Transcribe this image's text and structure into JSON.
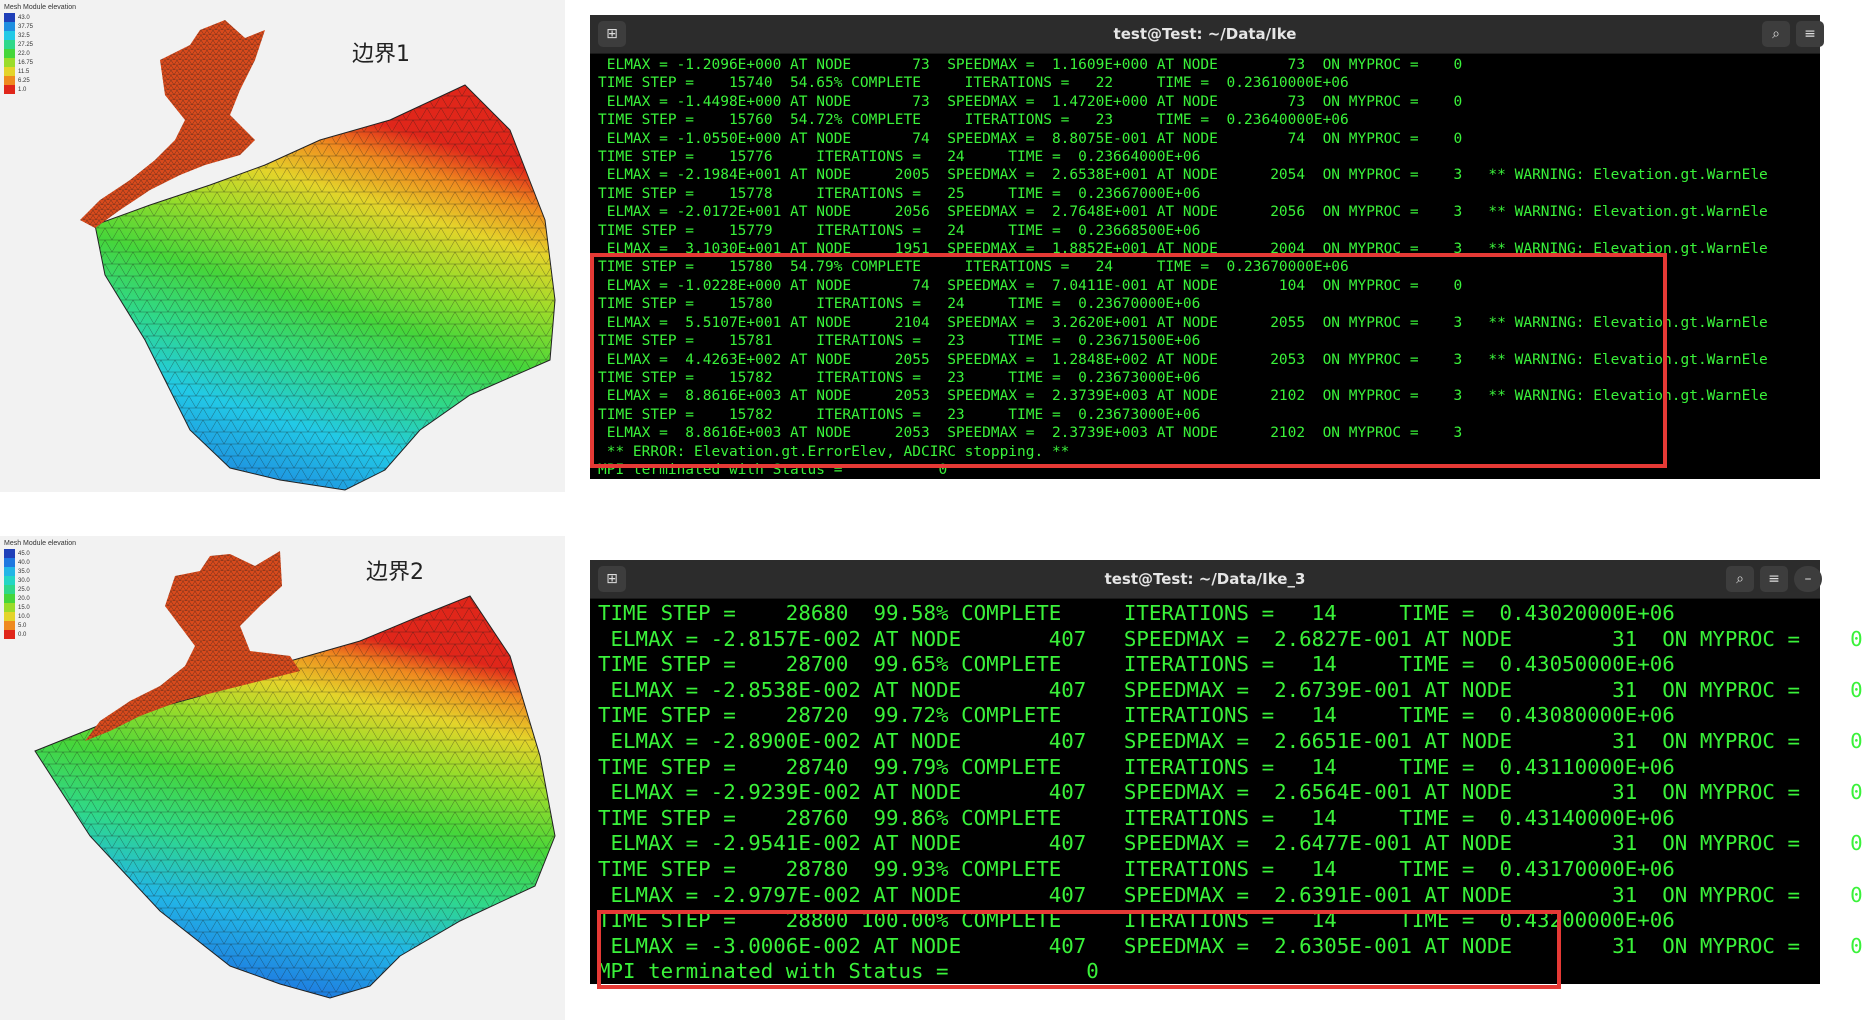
{
  "panels": [
    {
      "legend_title": "Mesh Module elevation",
      "legend_values": [
        "43.0",
        "37.75",
        "32.5",
        "27.25",
        "22.0",
        "16.75",
        "11.5",
        "6.25",
        "1.0"
      ],
      "legend_colors": [
        "#1f3fb8",
        "#1e8ee0",
        "#22c9e6",
        "#2fd88a",
        "#46d63a",
        "#9bdc2a",
        "#e4d42a",
        "#ef8a1f",
        "#e0261a"
      ],
      "boundary_label": "边界1"
    },
    {
      "legend_title": "Mesh Module elevation",
      "legend_values": [
        "45.0",
        "40.0",
        "35.0",
        "30.0",
        "25.0",
        "20.0",
        "15.0",
        "10.0",
        "5.0",
        "0.0"
      ],
      "legend_colors": [
        "#1f3fb8",
        "#1e78e0",
        "#22b6e6",
        "#24d6c4",
        "#2fd88a",
        "#46d63a",
        "#9bdc2a",
        "#e4d42a",
        "#ef8a1f",
        "#e0261a"
      ],
      "boundary_label": "边界2"
    }
  ],
  "terminals": [
    {
      "title": "test@Test: ~/Data/Ike",
      "new_tab_icon": "⊞",
      "buttons": {
        "search": "⌕",
        "menu": "≡"
      },
      "lines": [
        " ELMAX = -1.2096E+000 AT NODE       73  SPEEDMAX =  1.1609E+000 AT NODE        73  ON MYPROC =    0",
        "TIME STEP =    15740  54.65% COMPLETE     ITERATIONS =   22     TIME =  0.23610000E+06",
        " ELMAX = -1.4498E+000 AT NODE       73  SPEEDMAX =  1.4720E+000 AT NODE        73  ON MYPROC =    0",
        "TIME STEP =    15760  54.72% COMPLETE     ITERATIONS =   23     TIME =  0.23640000E+06",
        " ELMAX = -1.0550E+000 AT NODE       74  SPEEDMAX =  8.8075E-001 AT NODE        74  ON MYPROC =    0",
        "TIME STEP =    15776     ITERATIONS =   24     TIME =  0.23664000E+06",
        " ELMAX = -2.1984E+001 AT NODE     2005  SPEEDMAX =  2.6538E+001 AT NODE      2054  ON MYPROC =    3   ** WARNING: Elevation.gt.WarnEle",
        "TIME STEP =    15778     ITERATIONS =   25     TIME =  0.23667000E+06",
        " ELMAX = -2.0172E+001 AT NODE     2056  SPEEDMAX =  2.7648E+001 AT NODE      2056  ON MYPROC =    3   ** WARNING: Elevation.gt.WarnEle",
        "TIME STEP =    15779     ITERATIONS =   24     TIME =  0.23668500E+06",
        " ELMAX =  3.1030E+001 AT NODE     1951  SPEEDMAX =  1.8852E+001 AT NODE      2004  ON MYPROC =    3   ** WARNING: Elevation.gt.WarnEle",
        "TIME STEP =    15780  54.79% COMPLETE     ITERATIONS =   24     TIME =  0.23670000E+06",
        " ELMAX = -1.0228E+000 AT NODE       74  SPEEDMAX =  7.0411E-001 AT NODE       104  ON MYPROC =    0",
        "TIME STEP =    15780     ITERATIONS =   24     TIME =  0.23670000E+06",
        " ELMAX =  5.5107E+001 AT NODE     2104  SPEEDMAX =  3.2620E+001 AT NODE      2055  ON MYPROC =    3   ** WARNING: Elevation.gt.WarnEle",
        "TIME STEP =    15781     ITERATIONS =   23     TIME =  0.23671500E+06",
        " ELMAX =  4.4263E+002 AT NODE     2055  SPEEDMAX =  1.2848E+002 AT NODE      2053  ON MYPROC =    3   ** WARNING: Elevation.gt.WarnEle",
        "TIME STEP =    15782     ITERATIONS =   23     TIME =  0.23673000E+06",
        " ELMAX =  8.8616E+003 AT NODE     2053  SPEEDMAX =  2.3739E+003 AT NODE      2102  ON MYPROC =    3   ** WARNING: Elevation.gt.WarnEle",
        "TIME STEP =    15782     ITERATIONS =   23     TIME =  0.23673000E+06",
        " ELMAX =  8.8616E+003 AT NODE     2053  SPEEDMAX =  2.3739E+003 AT NODE      2102  ON MYPROC =    3",
        " ** ERROR: Elevation.gt.ErrorElev, ADCIRC stopping. **",
        "MPI terminated with Status =           0"
      ]
    },
    {
      "title": "test@Test: ~/Data/Ike_3",
      "new_tab_icon": "⊞",
      "buttons": {
        "search": "⌕",
        "menu": "≡",
        "minimize": "–"
      },
      "lines": [
        "TIME STEP =    28680  99.58% COMPLETE     ITERATIONS =   14     TIME =  0.43020000E+06",
        " ELMAX = -2.8157E-002 AT NODE       407   SPEEDMAX =  2.6827E-001 AT NODE        31  ON MYPROC =    0",
        "TIME STEP =    28700  99.65% COMPLETE     ITERATIONS =   14     TIME =  0.43050000E+06",
        " ELMAX = -2.8538E-002 AT NODE       407   SPEEDMAX =  2.6739E-001 AT NODE        31  ON MYPROC =    0",
        "TIME STEP =    28720  99.72% COMPLETE     ITERATIONS =   14     TIME =  0.43080000E+06",
        " ELMAX = -2.8900E-002 AT NODE       407   SPEEDMAX =  2.6651E-001 AT NODE        31  ON MYPROC =    0",
        "TIME STEP =    28740  99.79% COMPLETE     ITERATIONS =   14     TIME =  0.43110000E+06",
        " ELMAX = -2.9239E-002 AT NODE       407   SPEEDMAX =  2.6564E-001 AT NODE        31  ON MYPROC =    0",
        "TIME STEP =    28760  99.86% COMPLETE     ITERATIONS =   14     TIME =  0.43140000E+06",
        " ELMAX = -2.9541E-002 AT NODE       407   SPEEDMAX =  2.6477E-001 AT NODE        31  ON MYPROC =    0",
        "TIME STEP =    28780  99.93% COMPLETE     ITERATIONS =   14     TIME =  0.43170000E+06",
        " ELMAX = -2.9797E-002 AT NODE       407   SPEEDMAX =  2.6391E-001 AT NODE        31  ON MYPROC =    0",
        "TIME STEP =    28800 100.00% COMPLETE     ITERATIONS =   14     TIME =  0.43200000E+06",
        " ELMAX = -3.0006E-002 AT NODE       407   SPEEDMAX =  2.6305E-001 AT NODE        31  ON MYPROC =    0",
        "MPI terminated with Status =           0"
      ]
    }
  ]
}
